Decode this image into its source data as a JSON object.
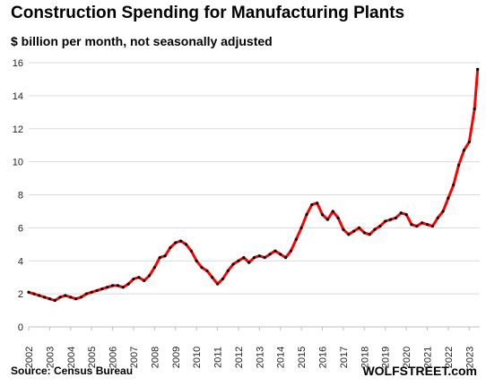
{
  "chart_data": {
    "type": "line",
    "title": "Construction  Spending  for  Manufacturing  Plants",
    "subtitle": "$ billion per month, not seasonally adjusted",
    "source": "Source: Census Bureau",
    "brand": "WOLFSTREET.com",
    "xlabel": "",
    "ylabel": "",
    "xlim": [
      2002,
      2023.5
    ],
    "ylim": [
      0,
      16
    ],
    "y_ticks": [
      0,
      2,
      4,
      6,
      8,
      10,
      12,
      14,
      16
    ],
    "x_ticks": [
      "2002",
      "2003",
      "2004",
      "2005",
      "2006",
      "2007",
      "2008",
      "2009",
      "2010",
      "2011",
      "2012",
      "2013",
      "2014",
      "2015",
      "2016",
      "2017",
      "2018",
      "2019",
      "2020",
      "2021",
      "2022",
      "2023"
    ],
    "grid": "horizontal",
    "line_color": "#ff0000",
    "marker_color": "#000000",
    "series": [
      {
        "x": [
          2002.0,
          2002.25,
          2002.5,
          2002.75,
          2003.0,
          2003.25,
          2003.5,
          2003.75,
          2004.0,
          2004.25,
          2004.5,
          2004.75,
          2005.0,
          2005.25,
          2005.5,
          2005.75,
          2006.0,
          2006.25,
          2006.5,
          2006.75,
          2007.0,
          2007.25,
          2007.5,
          2007.75,
          2008.0,
          2008.25,
          2008.5,
          2008.75,
          2009.0,
          2009.25,
          2009.5,
          2009.75,
          2010.0,
          2010.25,
          2010.5,
          2010.75,
          2011.0,
          2011.25,
          2011.5,
          2011.75,
          2012.0,
          2012.25,
          2012.5,
          2012.75,
          2013.0,
          2013.25,
          2013.5,
          2013.75,
          2014.0,
          2014.25,
          2014.5,
          2014.75,
          2015.0,
          2015.25,
          2015.5,
          2015.75,
          2016.0,
          2016.25,
          2016.5,
          2016.75,
          2017.0,
          2017.25,
          2017.5,
          2017.75,
          2018.0,
          2018.25,
          2018.5,
          2018.75,
          2019.0,
          2019.25,
          2019.5,
          2019.75,
          2020.0,
          2020.25,
          2020.5,
          2020.75,
          2021.0,
          2021.25,
          2021.5,
          2021.75,
          2022.0,
          2022.25,
          2022.5,
          2022.75,
          2023.0,
          2023.25,
          2023.4
        ],
        "values": [
          2.1,
          2.0,
          1.9,
          1.8,
          1.7,
          1.6,
          1.8,
          1.9,
          1.8,
          1.7,
          1.8,
          2.0,
          2.1,
          2.2,
          2.3,
          2.4,
          2.5,
          2.5,
          2.4,
          2.6,
          2.9,
          3.0,
          2.8,
          3.1,
          3.6,
          4.2,
          4.3,
          4.8,
          5.1,
          5.2,
          5.0,
          4.6,
          4.0,
          3.6,
          3.4,
          3.0,
          2.6,
          2.9,
          3.4,
          3.8,
          4.0,
          4.2,
          3.9,
          4.2,
          4.3,
          4.2,
          4.4,
          4.6,
          4.4,
          4.2,
          4.6,
          5.3,
          6.0,
          6.8,
          7.4,
          7.5,
          6.8,
          6.5,
          7.0,
          6.6,
          5.9,
          5.6,
          5.8,
          6.0,
          5.7,
          5.6,
          5.9,
          6.1,
          6.4,
          6.5,
          6.6,
          6.9,
          6.8,
          6.2,
          6.1,
          6.3,
          6.2,
          6.1,
          6.6,
          7.0,
          7.8,
          8.6,
          9.8,
          10.7,
          11.2,
          13.2,
          15.6
        ]
      }
    ]
  }
}
